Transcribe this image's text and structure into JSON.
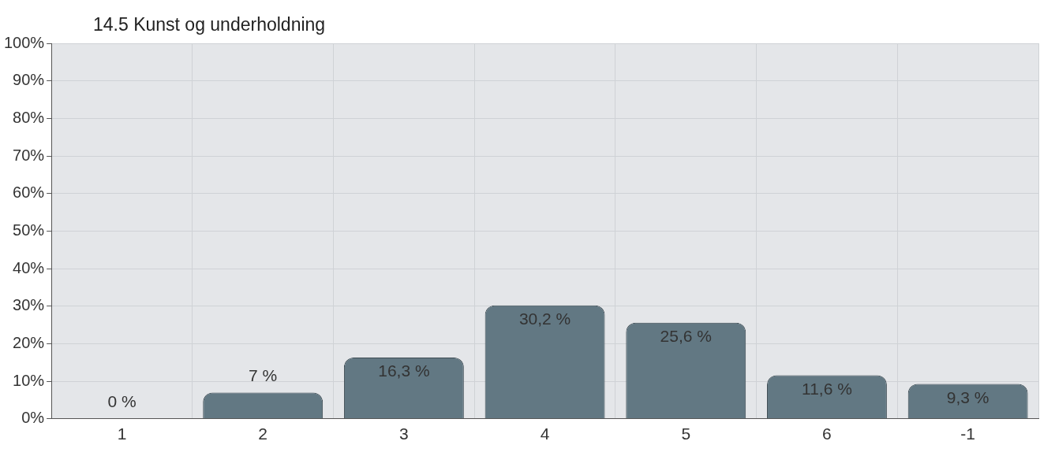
{
  "chart_data": {
    "type": "bar",
    "title": "14.5 Kunst og underholdning",
    "categories": [
      "1",
      "2",
      "3",
      "4",
      "5",
      "6",
      "-1"
    ],
    "values": [
      0,
      7,
      16.3,
      30.2,
      25.6,
      11.6,
      9.3
    ],
    "value_labels": [
      "0 %",
      "7 %",
      "16,3 %",
      "30,2 %",
      "25,6 %",
      "11,6 %",
      "9,3 %"
    ],
    "color": "#627883",
    "ylim": [
      0,
      100
    ],
    "yticks": [
      {
        "value": 0,
        "label": "0%"
      },
      {
        "value": 10,
        "label": "10%"
      },
      {
        "value": 20,
        "label": "20%"
      },
      {
        "value": 30,
        "label": "30%"
      },
      {
        "value": 40,
        "label": "40%"
      },
      {
        "value": 50,
        "label": "50%"
      },
      {
        "value": 60,
        "label": "60%"
      },
      {
        "value": 70,
        "label": "70%"
      },
      {
        "value": 80,
        "label": "80%"
      },
      {
        "value": 90,
        "label": "90%"
      },
      {
        "value": 100,
        "label": "100%"
      }
    ],
    "grid": true,
    "legend": false
  }
}
